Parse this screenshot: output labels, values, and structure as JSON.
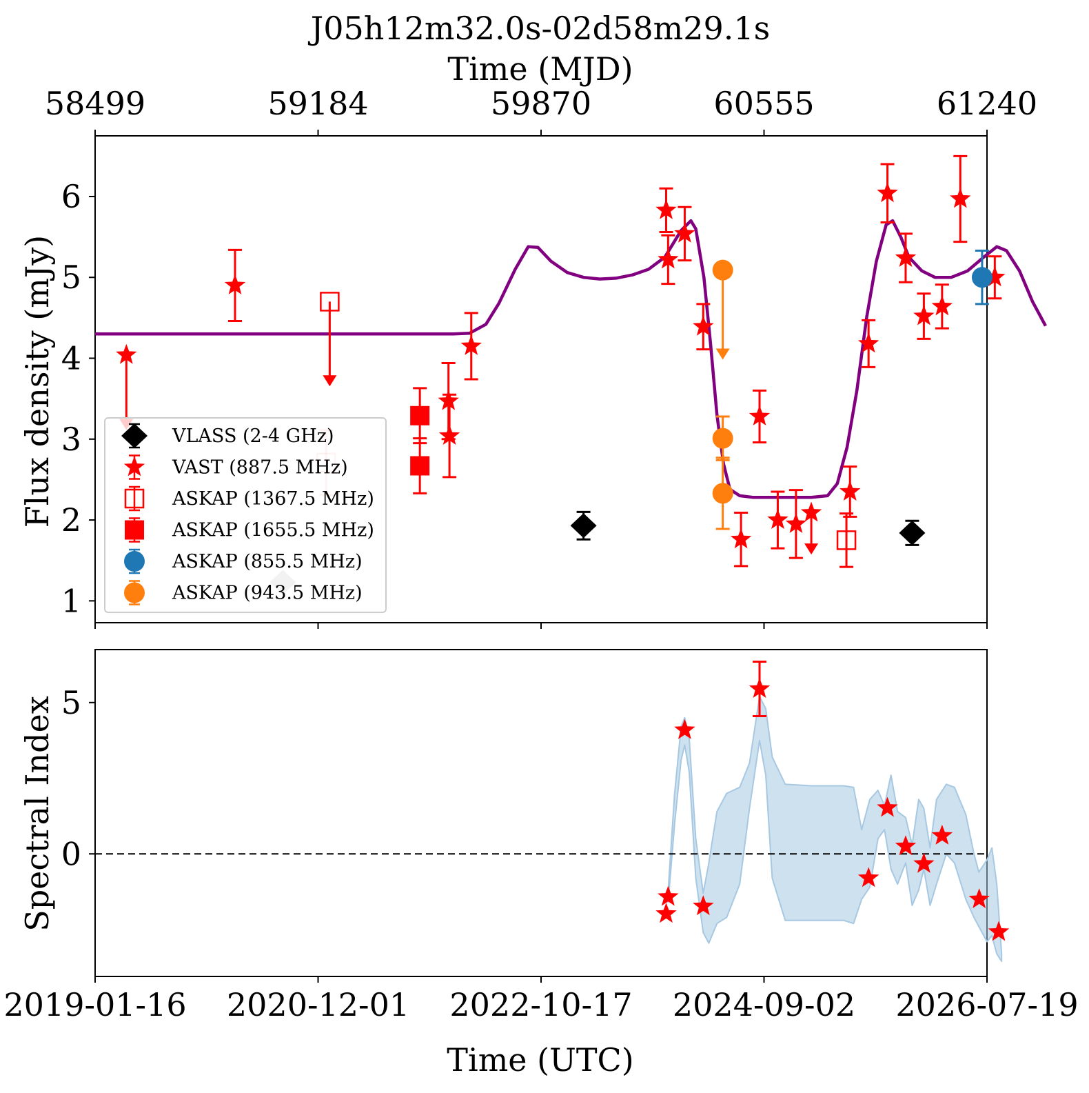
{
  "chart_data": {
    "title": "J05h12m32.0s-02d58m29.1s",
    "top_axis_label": "Time (MJD)",
    "top_ticks": [
      "58499",
      "59184",
      "59870",
      "60555",
      "61240"
    ],
    "bottom_axis_label": "Time (UTC)",
    "bottom_ticks": [
      "2019-01-16",
      "2020-12-01",
      "2022-10-17",
      "2024-09-02",
      "2026-07-19"
    ],
    "x_mjd_range": [
      58499,
      61240
    ],
    "panels": [
      {
        "type": "scatter",
        "ylabel": "Flux density (mJy)",
        "ylim": [
          0.73,
          6.75
        ],
        "yticks": [
          "1",
          "2",
          "3",
          "4",
          "5",
          "6"
        ],
        "legend": {
          "placement": "lower-left",
          "entries": [
            {
              "label": "VLASS (2-4 GHz)",
              "marker": "diamond",
              "color": "#000000"
            },
            {
              "label": "VAST (887.5 MHz)",
              "marker": "star",
              "color": "#ff0000"
            },
            {
              "label": "ASKAP (1367.5 MHz)",
              "marker": "open-square",
              "color": "#ff0000"
            },
            {
              "label": "ASKAP (1655.5 MHz)",
              "marker": "square",
              "color": "#ff0000"
            },
            {
              "label": "ASKAP (855.5 MHz)",
              "marker": "circle",
              "color": "#1f77b4"
            },
            {
              "label": "ASKAP (943.5 MHz)",
              "marker": "circle",
              "color": "#ff7f0e"
            }
          ]
        },
        "series": [
          {
            "name": "VLASS (2-4 GHz)",
            "marker": "diamond",
            "color": "#000000",
            "points": [
              {
                "x": 60000,
                "y": 1.93,
                "err": 0.17
              },
              {
                "x": 61010,
                "y": 1.84,
                "err": 0.15
              },
              {
                "x": 59076,
                "y": 1.23,
                "faded": true
              }
            ]
          },
          {
            "name": "VAST (887.5 MHz)",
            "marker": "star",
            "color": "#ff0000",
            "points": [
              {
                "x": 58595,
                "y": 4.04,
                "upper_to": 3.13
              },
              {
                "x": 58929,
                "y": 4.9,
                "err": 0.44
              },
              {
                "x": 59585,
                "y": 3.47,
                "err": 0.47
              },
              {
                "x": 59588,
                "y": 3.04,
                "err": 0.51
              },
              {
                "x": 59655,
                "y": 4.15,
                "err": 0.41
              },
              {
                "x": 60254,
                "y": 5.83,
                "err": 0.27
              },
              {
                "x": 60260,
                "y": 5.22,
                "err": 0.3
              },
              {
                "x": 60311,
                "y": 5.54,
                "err": 0.33
              },
              {
                "x": 60368,
                "y": 4.39,
                "err": 0.28
              },
              {
                "x": 60484,
                "y": 1.76,
                "err": 0.33
              },
              {
                "x": 60541,
                "y": 3.28,
                "err": 0.32
              },
              {
                "x": 60597,
                "y": 2.0,
                "err": 0.35
              },
              {
                "x": 60653,
                "y": 1.95,
                "err": 0.42
              },
              {
                "x": 60700,
                "y": 2.09,
                "upper_to": 1.59
              },
              {
                "x": 60819,
                "y": 2.35,
                "err": 0.31
              },
              {
                "x": 60876,
                "y": 4.18,
                "err": 0.29
              },
              {
                "x": 60934,
                "y": 6.04,
                "err": 0.36
              },
              {
                "x": 60990,
                "y": 5.24,
                "err": 0.3
              },
              {
                "x": 61046,
                "y": 4.52,
                "err": 0.28
              },
              {
                "x": 61102,
                "y": 4.64,
                "err": 0.27
              },
              {
                "x": 61158,
                "y": 5.97,
                "err": 0.53
              },
              {
                "x": 61264,
                "y": 5.0,
                "err": 0.26
              }
            ]
          },
          {
            "name": "ASKAP (1367.5 MHz)",
            "marker": "open-square",
            "color": "#ff0000",
            "points": [
              {
                "x": 59220,
                "y": 4.7,
                "upper_to": 3.67
              },
              {
                "x": 59209,
                "y": 2.71,
                "err": 0.4,
                "faded": true
              },
              {
                "x": 60808,
                "y": 1.75,
                "err": 0.33
              }
            ]
          },
          {
            "name": "ASKAP (1655.5 MHz)",
            "marker": "square",
            "color": "#ff0000",
            "points": [
              {
                "x": 59497,
                "y": 3.29,
                "err": 0.34
              },
              {
                "x": 59497,
                "y": 2.67,
                "err": 0.34
              }
            ]
          },
          {
            "name": "ASKAP (855.5 MHz)",
            "marker": "circle",
            "color": "#1f77b4",
            "points": [
              {
                "x": 61225,
                "y": 5.0,
                "err": 0.33
              }
            ]
          },
          {
            "name": "ASKAP (943.5 MHz)",
            "marker": "circle",
            "color": "#ff7f0e",
            "points": [
              {
                "x": 60428,
                "y": 5.09,
                "upper_to": 4.0
              },
              {
                "x": 60428,
                "y": 3.01,
                "err": 0.27
              },
              {
                "x": 60428,
                "y": 2.33,
                "err": 0.44
              }
            ]
          }
        ],
        "model_curve": {
          "color": "#800080",
          "points": [
            [
              58499,
              4.3
            ],
            [
              59600,
              4.3
            ],
            [
              59650,
              4.31
            ],
            [
              59700,
              4.42
            ],
            [
              59740,
              4.68
            ],
            [
              59790,
              5.1
            ],
            [
              59830,
              5.38
            ],
            [
              59860,
              5.37
            ],
            [
              59900,
              5.2
            ],
            [
              59950,
              5.06
            ],
            [
              60000,
              5.0
            ],
            [
              60050,
              4.98
            ],
            [
              60100,
              4.99
            ],
            [
              60150,
              5.03
            ],
            [
              60200,
              5.1
            ],
            [
              60250,
              5.25
            ],
            [
              60300,
              5.58
            ],
            [
              60330,
              5.7
            ],
            [
              60345,
              5.6
            ],
            [
              60370,
              5.0
            ],
            [
              60390,
              4.2
            ],
            [
              60410,
              3.3
            ],
            [
              60430,
              2.7
            ],
            [
              60450,
              2.38
            ],
            [
              60480,
              2.3
            ],
            [
              60520,
              2.28
            ],
            [
              60700,
              2.28
            ],
            [
              60750,
              2.3
            ],
            [
              60780,
              2.45
            ],
            [
              60810,
              2.9
            ],
            [
              60840,
              3.6
            ],
            [
              60870,
              4.5
            ],
            [
              60900,
              5.2
            ],
            [
              60930,
              5.65
            ],
            [
              60950,
              5.7
            ],
            [
              60975,
              5.5
            ],
            [
              61000,
              5.25
            ],
            [
              61040,
              5.08
            ],
            [
              61080,
              5.0
            ],
            [
              61130,
              5.0
            ],
            [
              61180,
              5.08
            ],
            [
              61230,
              5.25
            ],
            [
              61270,
              5.38
            ],
            [
              61300,
              5.33
            ],
            [
              61340,
              5.08
            ],
            [
              61380,
              4.7
            ],
            [
              61420,
              4.4
            ]
          ]
        }
      },
      {
        "type": "scatter",
        "ylabel": "Spectral Index",
        "ylim": [
          -4.05,
          6.75
        ],
        "yticks": [
          "0",
          "5"
        ],
        "reference_line": {
          "y": 0,
          "style": "dashed",
          "color": "#000000"
        },
        "series": [
          {
            "name": "VAST spectral index",
            "marker": "star",
            "color": "#ff0000",
            "points": [
              {
                "x": 60254,
                "y": -1.98
              },
              {
                "x": 60260,
                "y": -1.42
              },
              {
                "x": 60311,
                "y": 4.09
              },
              {
                "x": 60368,
                "y": -1.73
              },
              {
                "x": 60541,
                "y": 5.45,
                "err": 0.9
              },
              {
                "x": 60876,
                "y": -0.8
              },
              {
                "x": 60934,
                "y": 1.52
              },
              {
                "x": 60990,
                "y": 0.25
              },
              {
                "x": 61046,
                "y": -0.33
              },
              {
                "x": 61102,
                "y": 0.6
              },
              {
                "x": 61216,
                "y": -1.5
              },
              {
                "x": 61276,
                "y": -2.58
              }
            ]
          }
        ],
        "uncertainty_band": {
          "color": "#a6c8e2",
          "upper": [
            [
              60260,
              -1.2
            ],
            [
              60280,
              2.0
            ],
            [
              60300,
              4.2
            ],
            [
              60311,
              4.5
            ],
            [
              60325,
              3.8
            ],
            [
              60345,
              0.5
            ],
            [
              60368,
              -1.3
            ],
            [
              60385,
              -0.3
            ],
            [
              60410,
              1.4
            ],
            [
              60440,
              2.0
            ],
            [
              60480,
              2.2
            ],
            [
              60510,
              3.0
            ],
            [
              60541,
              5.2
            ],
            [
              60560,
              4.8
            ],
            [
              60580,
              3.2
            ],
            [
              60620,
              2.3
            ],
            [
              60700,
              2.25
            ],
            [
              60800,
              2.25
            ],
            [
              60830,
              2.2
            ],
            [
              60855,
              0.8
            ],
            [
              60880,
              1.8
            ],
            [
              60905,
              2.1
            ],
            [
              60925,
              1.6
            ],
            [
              60945,
              2.6
            ],
            [
              60965,
              1.4
            ],
            [
              60990,
              1.2
            ],
            [
              61010,
              0.3
            ],
            [
              61030,
              1.8
            ],
            [
              61046,
              1.5
            ],
            [
              61065,
              0.2
            ],
            [
              61085,
              1.8
            ],
            [
              61115,
              2.3
            ],
            [
              61140,
              2.2
            ],
            [
              61175,
              1.3
            ],
            [
              61200,
              0.0
            ],
            [
              61215,
              -0.6
            ],
            [
              61240,
              -0.2
            ],
            [
              61255,
              0.2
            ],
            [
              61270,
              -1.0
            ],
            [
              61285,
              -3.3
            ]
          ],
          "lower": [
            [
              60260,
              -1.6
            ],
            [
              60280,
              1.0
            ],
            [
              60300,
              3.1
            ],
            [
              60311,
              3.6
            ],
            [
              60325,
              2.7
            ],
            [
              60345,
              -0.8
            ],
            [
              60368,
              -2.6
            ],
            [
              60385,
              -2.95
            ],
            [
              60410,
              -2.3
            ],
            [
              60440,
              -2.1
            ],
            [
              60480,
              -1.0
            ],
            [
              60510,
              1.5
            ],
            [
              60541,
              3.75
            ],
            [
              60560,
              2.6
            ],
            [
              60580,
              -0.8
            ],
            [
              60620,
              -2.2
            ],
            [
              60700,
              -2.2
            ],
            [
              60800,
              -2.2
            ],
            [
              60830,
              -2.3
            ],
            [
              60855,
              -1.5
            ],
            [
              60880,
              -1.1
            ],
            [
              60905,
              0.5
            ],
            [
              60925,
              0.8
            ],
            [
              60945,
              -0.5
            ],
            [
              60965,
              -1.0
            ],
            [
              60990,
              -0.3
            ],
            [
              61010,
              -1.7
            ],
            [
              61030,
              -1.2
            ],
            [
              61046,
              -0.5
            ],
            [
              61065,
              -1.7
            ],
            [
              61085,
              -1.0
            ],
            [
              61115,
              0.0
            ],
            [
              61140,
              -0.3
            ],
            [
              61175,
              -1.5
            ],
            [
              61200,
              -2.1
            ],
            [
              61215,
              -2.4
            ],
            [
              61240,
              -2.9
            ],
            [
              61255,
              -2.7
            ],
            [
              61270,
              -3.3
            ],
            [
              61285,
              -3.55
            ]
          ]
        }
      }
    ]
  }
}
